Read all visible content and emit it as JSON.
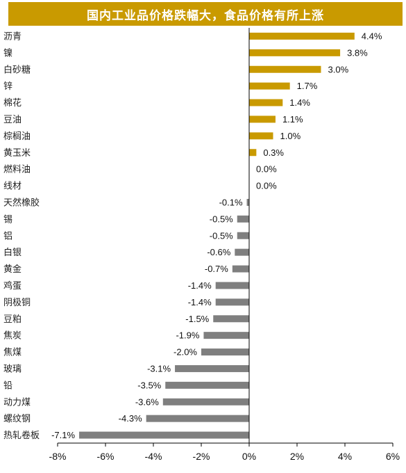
{
  "chart_data": {
    "type": "bar",
    "orientation": "horizontal",
    "title": "国内工业品价格跌幅大，食品价格有所上涨",
    "categories": [
      "沥青",
      "镍",
      "白砂糖",
      "锌",
      "棉花",
      "豆油",
      "棕榈油",
      "黄玉米",
      "燃料油",
      "线材",
      "天然橡胶",
      "锡",
      "铝",
      "白银",
      "黄金",
      "鸡蛋",
      "阴极铜",
      "豆粕",
      "焦炭",
      "焦煤",
      "玻璃",
      "铅",
      "动力煤",
      "螺纹钢",
      "热轧卷板"
    ],
    "values": [
      4.4,
      3.8,
      3.0,
      1.7,
      1.4,
      1.1,
      1.0,
      0.3,
      0.0,
      0.0,
      -0.1,
      -0.5,
      -0.5,
      -0.6,
      -0.7,
      -1.4,
      -1.4,
      -1.5,
      -1.9,
      -2.0,
      -3.1,
      -3.5,
      -3.6,
      -4.3,
      -7.1
    ],
    "value_labels": [
      "4.4%",
      "3.8%",
      "3.0%",
      "1.7%",
      "1.4%",
      "1.1%",
      "1.0%",
      "0.3%",
      "0.0%",
      "0.0%",
      "-0.1%",
      "-0.5%",
      "-0.5%",
      "-0.6%",
      "-0.7%",
      "-1.4%",
      "-1.4%",
      "-1.5%",
      "-1.9%",
      "-2.0%",
      "-3.1%",
      "-3.5%",
      "-3.6%",
      "-4.3%",
      "-7.1%"
    ],
    "xlim": [
      -8,
      6
    ],
    "xticks": [
      -8,
      -6,
      -4,
      -2,
      0,
      2,
      4,
      6
    ],
    "xtick_labels": [
      "-8%",
      "-6%",
      "-4%",
      "-2%",
      "0%",
      "2%",
      "4%",
      "6%"
    ],
    "grid": false,
    "legend": "none",
    "colors": {
      "positive": "#c99a00",
      "negative": "#7f7f7f",
      "title_bg": "#c99a00",
      "axis": "#000000"
    }
  }
}
